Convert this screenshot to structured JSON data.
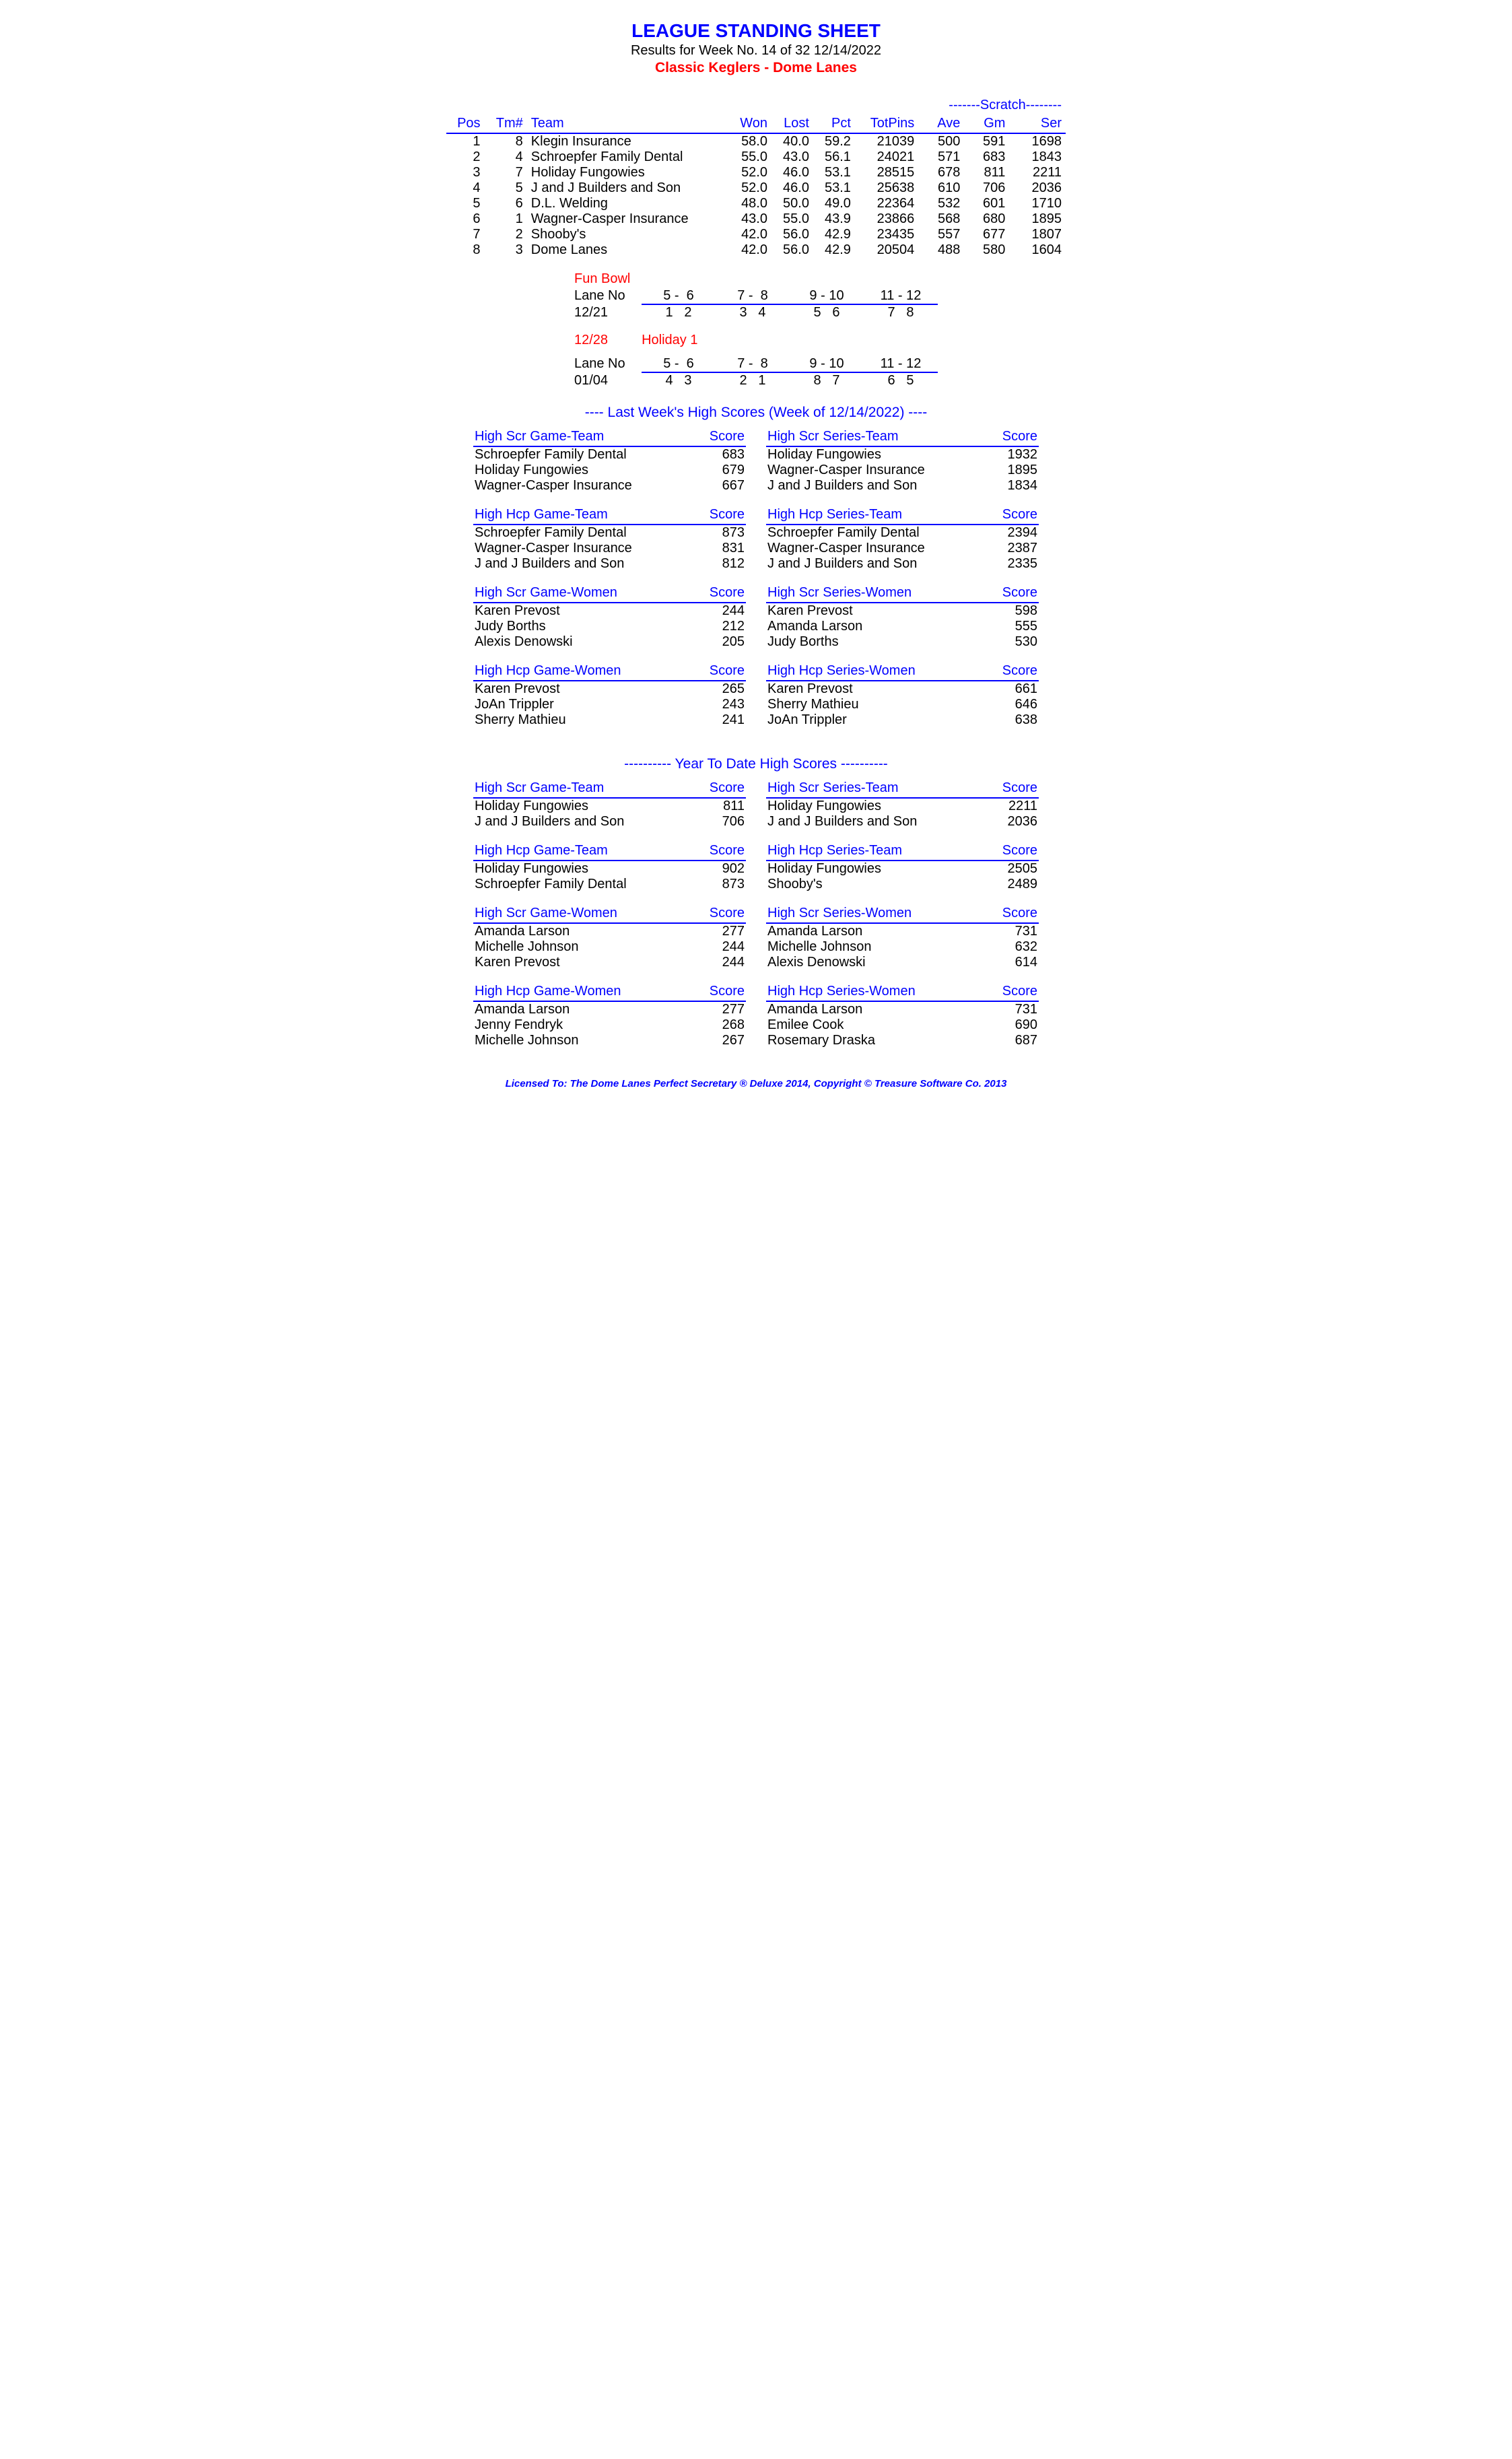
{
  "header": {
    "title": "LEAGUE STANDING SHEET",
    "subtitle": "Results for Week No. 14 of 32    12/14/2022",
    "league": "Classic Keglers - Dome Lanes"
  },
  "standings": {
    "scratch_label": "-------Scratch--------",
    "columns": [
      "Pos",
      "Tm#",
      "Team",
      "Won",
      "Lost",
      "Pct",
      "TotPins",
      "Ave",
      "Gm",
      "Ser"
    ],
    "rows": [
      {
        "pos": "1",
        "tm": "8",
        "team": "Klegin Insurance",
        "won": "58.0",
        "lost": "40.0",
        "pct": "59.2",
        "totpins": "21039",
        "ave": "500",
        "gm": "591",
        "ser": "1698"
      },
      {
        "pos": "2",
        "tm": "4",
        "team": "Schroepfer Family Dental",
        "won": "55.0",
        "lost": "43.0",
        "pct": "56.1",
        "totpins": "24021",
        "ave": "571",
        "gm": "683",
        "ser": "1843"
      },
      {
        "pos": "3",
        "tm": "7",
        "team": "Holiday Fungowies",
        "won": "52.0",
        "lost": "46.0",
        "pct": "53.1",
        "totpins": "28515",
        "ave": "678",
        "gm": "811",
        "ser": "2211"
      },
      {
        "pos": "4",
        "tm": "5",
        "team": "J and J Builders and Son",
        "won": "52.0",
        "lost": "46.0",
        "pct": "53.1",
        "totpins": "25638",
        "ave": "610",
        "gm": "706",
        "ser": "2036"
      },
      {
        "pos": "5",
        "tm": "6",
        "team": "D.L. Welding",
        "won": "48.0",
        "lost": "50.0",
        "pct": "49.0",
        "totpins": "22364",
        "ave": "532",
        "gm": "601",
        "ser": "1710"
      },
      {
        "pos": "6",
        "tm": "1",
        "team": "Wagner-Casper Insurance",
        "won": "43.0",
        "lost": "55.0",
        "pct": "43.9",
        "totpins": "23866",
        "ave": "568",
        "gm": "680",
        "ser": "1895"
      },
      {
        "pos": "7",
        "tm": "2",
        "team": "Shooby's",
        "won": "42.0",
        "lost": "56.0",
        "pct": "42.9",
        "totpins": "23435",
        "ave": "557",
        "gm": "677",
        "ser": "1807"
      },
      {
        "pos": "8",
        "tm": "3",
        "team": "Dome Lanes",
        "won": "42.0",
        "lost": "56.0",
        "pct": "42.9",
        "totpins": "20504",
        "ave": "488",
        "gm": "580",
        "ser": "1604"
      }
    ]
  },
  "lanes": {
    "fun_bowl_label": "Fun Bowl",
    "lane_no_label": "Lane No",
    "lane_pairs": [
      "5 -  6",
      "7 -  8",
      "9 - 10",
      "11 - 12"
    ],
    "block1_date": "12/21",
    "block1_cells": [
      "1   2",
      "3   4",
      "5   6",
      "7   8"
    ],
    "holiday_date": "12/28",
    "holiday_label": "Holiday 1",
    "block2_date": "01/04",
    "block2_cells": [
      "4   3",
      "2   1",
      "8   7",
      "6   5"
    ]
  },
  "lastweek": {
    "header": "----  Last Week's High Scores   (Week of 12/14/2022)  ----",
    "tables": {
      "left": [
        {
          "title": "High Scr Game-Team",
          "score_label": "Score",
          "rows": [
            {
              "n": "Schroepfer Family Dental",
              "s": "683"
            },
            {
              "n": "Holiday Fungowies",
              "s": "679"
            },
            {
              "n": "Wagner-Casper Insurance",
              "s": "667"
            }
          ]
        },
        {
          "title": "High Hcp Game-Team",
          "score_label": "Score",
          "rows": [
            {
              "n": "Schroepfer Family Dental",
              "s": "873"
            },
            {
              "n": "Wagner-Casper Insurance",
              "s": "831"
            },
            {
              "n": "J and J Builders and Son",
              "s": "812"
            }
          ]
        },
        {
          "title": "High Scr Game-Women",
          "score_label": "Score",
          "rows": [
            {
              "n": "Karen Prevost",
              "s": "244"
            },
            {
              "n": "Judy Borths",
              "s": "212"
            },
            {
              "n": "Alexis Denowski",
              "s": "205"
            }
          ]
        },
        {
          "title": "High Hcp Game-Women",
          "score_label": "Score",
          "rows": [
            {
              "n": "Karen Prevost",
              "s": "265"
            },
            {
              "n": "JoAn Trippler",
              "s": "243"
            },
            {
              "n": "Sherry Mathieu",
              "s": "241"
            }
          ]
        }
      ],
      "right": [
        {
          "title": "High Scr Series-Team",
          "score_label": "Score",
          "rows": [
            {
              "n": "Holiday Fungowies",
              "s": "1932"
            },
            {
              "n": "Wagner-Casper Insurance",
              "s": "1895"
            },
            {
              "n": "J and J Builders and Son",
              "s": "1834"
            }
          ]
        },
        {
          "title": "High Hcp Series-Team",
          "score_label": "Score",
          "rows": [
            {
              "n": "Schroepfer Family Dental",
              "s": "2394"
            },
            {
              "n": "Wagner-Casper Insurance",
              "s": "2387"
            },
            {
              "n": "J and J Builders and Son",
              "s": "2335"
            }
          ]
        },
        {
          "title": "High Scr Series-Women",
          "score_label": "Score",
          "rows": [
            {
              "n": "Karen Prevost",
              "s": "598"
            },
            {
              "n": "Amanda Larson",
              "s": "555"
            },
            {
              "n": "Judy Borths",
              "s": "530"
            }
          ]
        },
        {
          "title": "High Hcp Series-Women",
          "score_label": "Score",
          "rows": [
            {
              "n": "Karen Prevost",
              "s": "661"
            },
            {
              "n": "Sherry Mathieu",
              "s": "646"
            },
            {
              "n": "JoAn Trippler",
              "s": "638"
            }
          ]
        }
      ]
    }
  },
  "ytd": {
    "header": "---------- Year To Date High Scores ----------",
    "tables": {
      "left": [
        {
          "title": "High Scr Game-Team",
          "score_label": "Score",
          "rows": [
            {
              "n": "Holiday Fungowies",
              "s": "811"
            },
            {
              "n": "J and J Builders and Son",
              "s": "706"
            }
          ]
        },
        {
          "title": "High Hcp Game-Team",
          "score_label": "Score",
          "rows": [
            {
              "n": "Holiday Fungowies",
              "s": "902"
            },
            {
              "n": "Schroepfer Family Dental",
              "s": "873"
            }
          ]
        },
        {
          "title": "High Scr Game-Women",
          "score_label": "Score",
          "rows": [
            {
              "n": "Amanda Larson",
              "s": "277"
            },
            {
              "n": "Michelle Johnson",
              "s": "244"
            },
            {
              "n": "Karen Prevost",
              "s": "244"
            }
          ]
        },
        {
          "title": "High Hcp Game-Women",
          "score_label": "Score",
          "rows": [
            {
              "n": "Amanda Larson",
              "s": "277"
            },
            {
              "n": "Jenny Fendryk",
              "s": "268"
            },
            {
              "n": "Michelle Johnson",
              "s": "267"
            }
          ]
        }
      ],
      "right": [
        {
          "title": "High Scr Series-Team",
          "score_label": "Score",
          "rows": [
            {
              "n": "Holiday Fungowies",
              "s": "2211"
            },
            {
              "n": "J and J Builders and Son",
              "s": "2036"
            }
          ]
        },
        {
          "title": "High Hcp Series-Team",
          "score_label": "Score",
          "rows": [
            {
              "n": "Holiday Fungowies",
              "s": "2505"
            },
            {
              "n": "Shooby's",
              "s": "2489"
            }
          ]
        },
        {
          "title": "High Scr Series-Women",
          "score_label": "Score",
          "rows": [
            {
              "n": "Amanda Larson",
              "s": "731"
            },
            {
              "n": "Michelle Johnson",
              "s": "632"
            },
            {
              "n": "Alexis Denowski",
              "s": "614"
            }
          ]
        },
        {
          "title": "High Hcp Series-Women",
          "score_label": "Score",
          "rows": [
            {
              "n": "Amanda Larson",
              "s": "731"
            },
            {
              "n": "Emilee Cook",
              "s": "690"
            },
            {
              "n": "Rosemary Draska",
              "s": "687"
            }
          ]
        }
      ]
    }
  },
  "footer": "Licensed To: The Dome Lanes    Perfect Secretary ® Deluxe  2014, Copyright © Treasure Software Co. 2013"
}
